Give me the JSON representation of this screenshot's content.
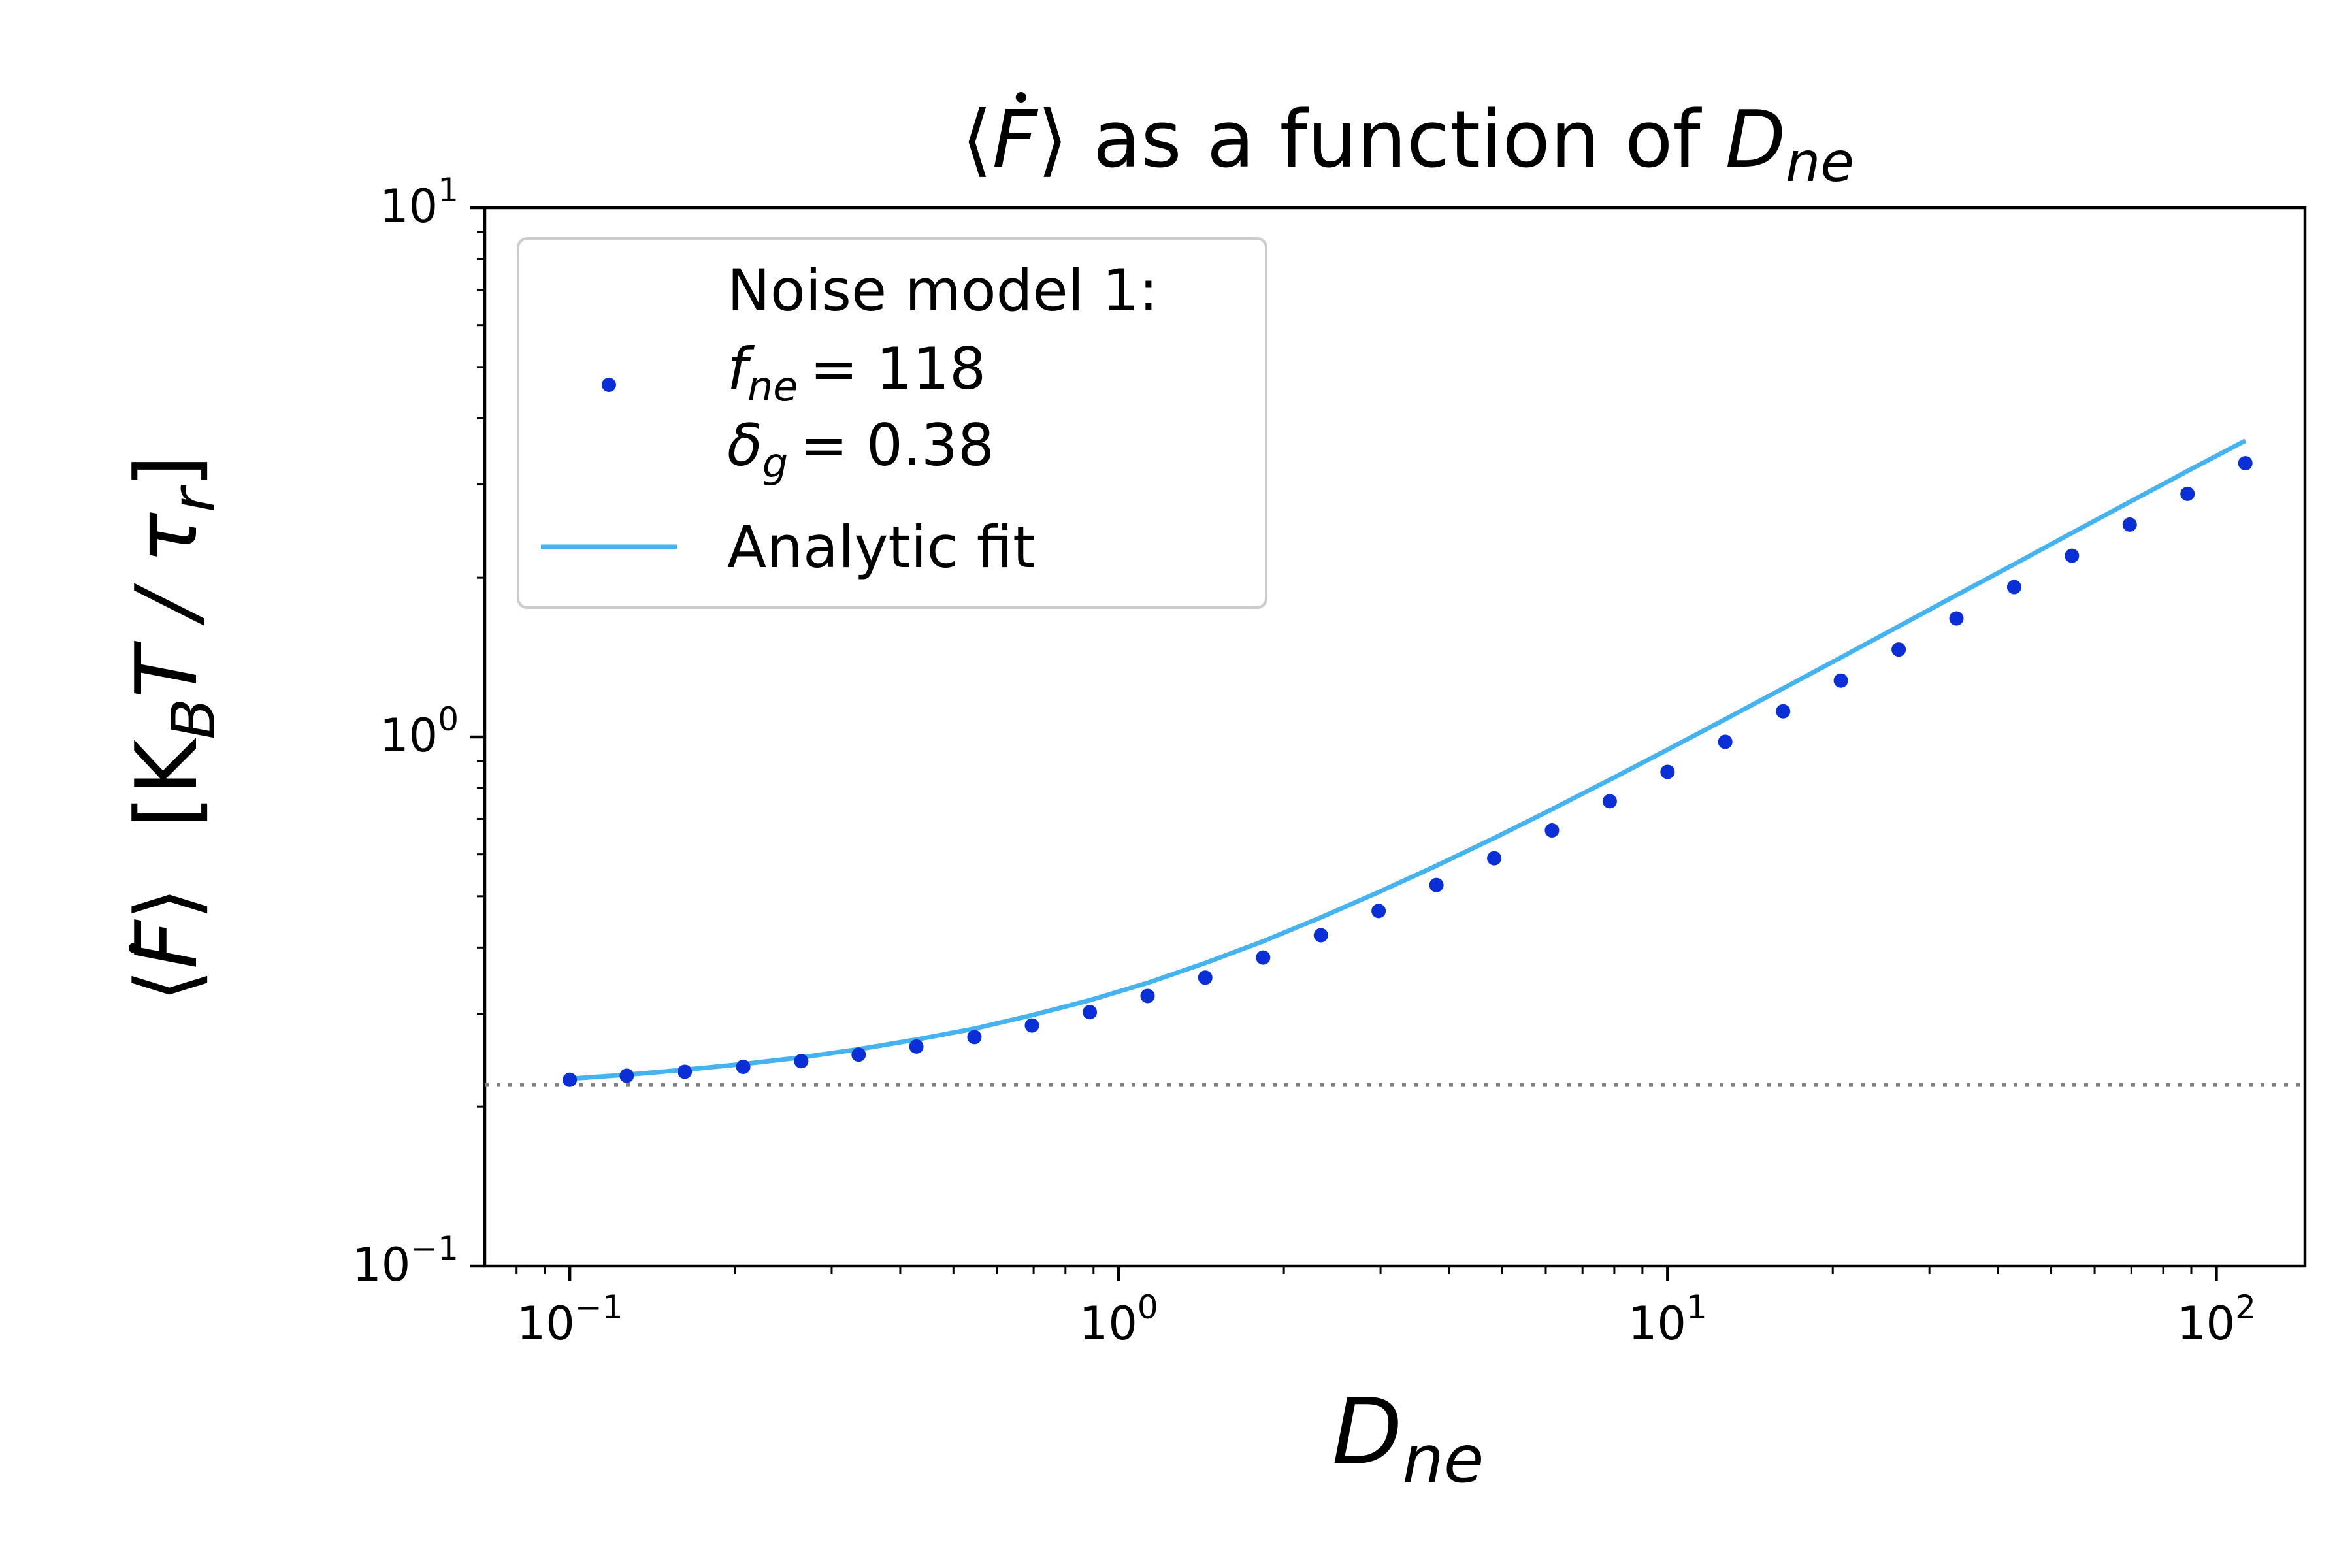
{
  "chart_data": {
    "type": "scatter",
    "title": {
      "prefix": "⟨",
      "symbol": "F",
      "suffix": "⟩ as a function of ",
      "var_main": "D",
      "var_sub": "ne"
    },
    "xlabel": {
      "main": "D",
      "sub": "ne"
    },
    "ylabel": {
      "open": "⟨",
      "symbol": "F",
      "close": "⟩",
      "units_open": "[K",
      "units_sub_B": "B",
      "units_T": "T / ",
      "units_tau": "τ",
      "units_sub_r": "r",
      "units_close": "]"
    },
    "x_scale": "log",
    "y_scale": "log",
    "xlim": [
      0.07,
      145
    ],
    "ylim": [
      0.1,
      10
    ],
    "x_ticks": [
      {
        "value": 0.1,
        "base": "10",
        "exp": "−1"
      },
      {
        "value": 1,
        "base": "10",
        "exp": "0"
      },
      {
        "value": 10,
        "base": "10",
        "exp": "1"
      },
      {
        "value": 100,
        "base": "10",
        "exp": "2"
      }
    ],
    "y_ticks": [
      {
        "value": 0.1,
        "base": "10",
        "exp": "−1"
      },
      {
        "value": 1,
        "base": "10",
        "exp": "0"
      },
      {
        "value": 10,
        "base": "10",
        "exp": "1"
      }
    ],
    "grid": false,
    "legend_position": "upper-left",
    "reference_line": {
      "y": 0.22,
      "style": "dotted",
      "color": "#808080"
    },
    "series": [
      {
        "name_lines": [
          "Noise model 1:",
          "= 118",
          "= 0.38"
        ],
        "name_symbols": [
          {
            "main": "f",
            "sub": "ne"
          },
          {
            "main": "δ",
            "sub": "g"
          }
        ],
        "kind": "scatter",
        "color": "#0a2fd6",
        "x": [
          0.1,
          0.127,
          0.162,
          0.207,
          0.264,
          0.336,
          0.428,
          0.546,
          0.695,
          0.886,
          1.129,
          1.438,
          1.833,
          2.336,
          2.976,
          3.793,
          4.833,
          6.158,
          7.848,
          10.0,
          12.74,
          16.24,
          20.69,
          26.37,
          33.6,
          42.81,
          54.55,
          69.52,
          88.59,
          112.9
        ],
        "y": [
          0.225,
          0.229,
          0.233,
          0.238,
          0.244,
          0.251,
          0.26,
          0.271,
          0.285,
          0.302,
          0.324,
          0.351,
          0.383,
          0.422,
          0.469,
          0.525,
          0.59,
          0.666,
          0.756,
          0.859,
          0.979,
          1.118,
          1.278,
          1.463,
          1.675,
          1.92,
          2.2,
          2.52,
          2.88,
          3.29
        ]
      },
      {
        "name": "Analytic fit",
        "kind": "line",
        "color": "#45b3ef",
        "x": [
          0.1,
          0.127,
          0.162,
          0.207,
          0.264,
          0.336,
          0.428,
          0.546,
          0.695,
          0.886,
          1.129,
          1.438,
          1.833,
          2.336,
          2.976,
          3.793,
          4.833,
          6.158,
          7.848,
          10.0,
          12.74,
          16.24,
          20.69,
          26.37,
          33.6,
          42.81,
          54.55,
          69.52,
          88.59,
          112.9
        ],
        "y": [
          0.226,
          0.23,
          0.235,
          0.241,
          0.248,
          0.257,
          0.268,
          0.281,
          0.298,
          0.318,
          0.343,
          0.374,
          0.411,
          0.456,
          0.509,
          0.571,
          0.644,
          0.73,
          0.83,
          0.946,
          1.08,
          1.235,
          1.413,
          1.618,
          1.853,
          2.12,
          2.43,
          2.78,
          3.18,
          3.63
        ]
      }
    ]
  }
}
